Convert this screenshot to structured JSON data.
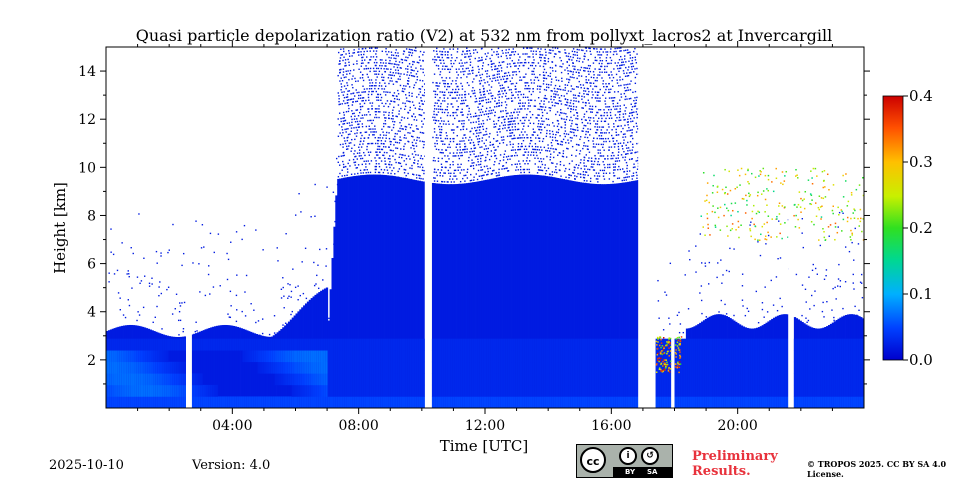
{
  "chart_data": {
    "type": "heatmap",
    "title": "Quasi particle depolarization ratio (V2) at 532 nm from pollyxt_lacros2 at Invercargill",
    "xlabel": "Time [UTC]",
    "ylabel": "Height [km]",
    "x_unit": "hours UTC",
    "xlim": [
      0,
      24
    ],
    "ylim": [
      0,
      15
    ],
    "x_ticks": [
      4,
      8,
      12,
      16,
      20
    ],
    "x_tick_labels": [
      "04:00",
      "08:00",
      "12:00",
      "16:00",
      "20:00"
    ],
    "y_ticks": [
      2,
      4,
      6,
      8,
      10,
      12,
      14
    ],
    "y_tick_labels": [
      "2",
      "4",
      "6",
      "8",
      "10",
      "12",
      "14"
    ],
    "colorbar": {
      "min": 0.0,
      "max": 0.4,
      "ticks": [
        0.0,
        0.1,
        0.2,
        0.3,
        0.4
      ],
      "tick_labels": [
        "0.0",
        "0.1",
        "0.2",
        "0.3",
        "0.4"
      ],
      "colormap": "jet"
    },
    "data_gaps_hours": [
      [
        2.55,
        2.72
      ],
      [
        10.1,
        10.3
      ],
      [
        16.85,
        17.4
      ],
      [
        17.9,
        18.0
      ],
      [
        21.6,
        21.75
      ]
    ],
    "features": [
      {
        "name": "boundary layer",
        "t0": 0,
        "t1": 24,
        "top_km": 2.8,
        "value": 0.03
      },
      {
        "name": "cloud/aerosol column",
        "t0": 7.2,
        "t1": 16.9,
        "top_km": 15,
        "value": 0.02
      },
      {
        "name": "scattered high depolarization layer",
        "t0": 18.8,
        "t1": 24,
        "bottom_km": 7,
        "top_km": 10,
        "value": 0.25
      },
      {
        "name": "depolarizing feature",
        "t0": 16.9,
        "t1": 18.2,
        "bottom_km": 1.5,
        "top_km": 3,
        "value": 0.3
      }
    ]
  },
  "footer": {
    "date": "2025-10-10",
    "version": "Version: 4.0",
    "preliminary": "Preliminary Results.",
    "license": "© TROPOS 2025. CC BY SA 4.0 License.",
    "cc_badge_text": "cc",
    "cc_by": "BY",
    "cc_sa": "SA"
  }
}
